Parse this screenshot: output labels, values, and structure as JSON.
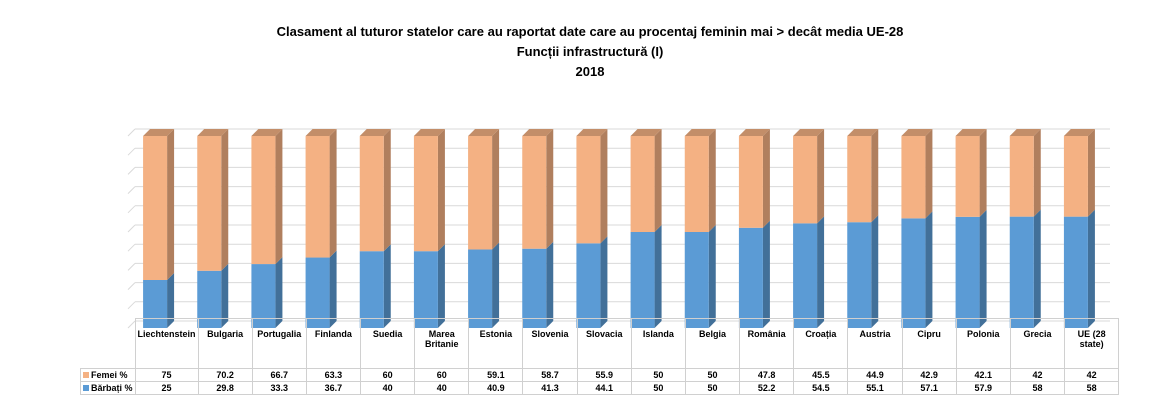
{
  "chart_data": {
    "type": "stacked_bar_3d",
    "title": "Clasament al tuturor statelor care au raportat date care au procentaj feminin mai > decât media UE-28",
    "subtitle": "Funcții infrastructură (I)",
    "year": "2018",
    "categories": [
      "Liechtenstein",
      "Bulgaria",
      "Portugalia",
      "Finlanda",
      "Suedia",
      "Marea Britanie",
      "Estonia",
      "Slovenia",
      "Slovacia",
      "Islanda",
      "Belgia",
      "România",
      "Croația",
      "Austria",
      "Cipru",
      "Polonia",
      "Grecia",
      "UE (28 state)"
    ],
    "series": [
      {
        "name": "Femei %",
        "color": "#f4b183",
        "values": [
          75,
          70.2,
          66.7,
          63.3,
          60,
          60,
          59.1,
          58.7,
          55.9,
          50,
          50,
          47.8,
          45.5,
          44.9,
          42.9,
          42.1,
          42,
          42
        ]
      },
      {
        "name": "Bărbați %",
        "color": "#5b9bd5",
        "values": [
          25,
          29.8,
          33.3,
          36.7,
          40,
          40,
          40.9,
          41.3,
          44.1,
          50,
          50,
          52.2,
          54.5,
          55.1,
          57.1,
          57.9,
          58,
          58
        ]
      }
    ],
    "ylim": [
      0,
      100
    ],
    "yticks": [
      0,
      10,
      20,
      30,
      40,
      50,
      60,
      70,
      80,
      90,
      100
    ],
    "grid": true
  }
}
